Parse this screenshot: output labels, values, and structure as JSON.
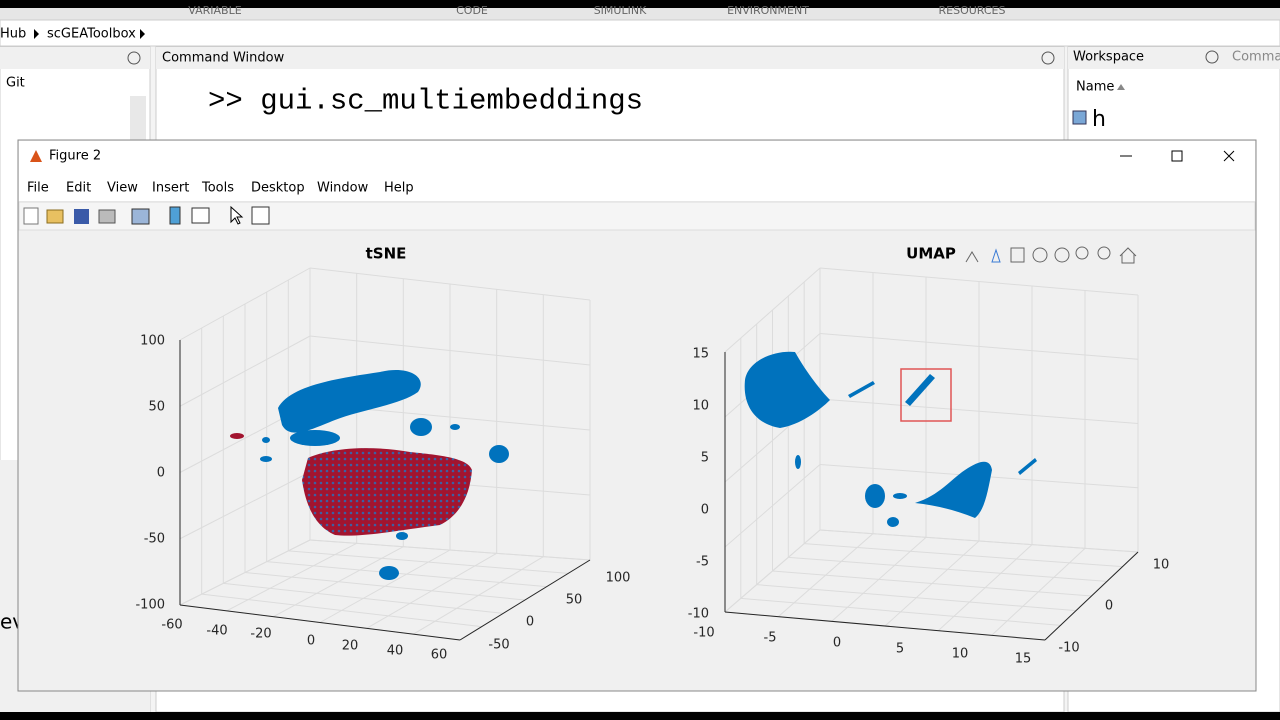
{
  "toolstrip": {
    "tabs": [
      "VARIABLE",
      "CODE",
      "SIMULINK",
      "ENVIRONMENT",
      "RESOURCES"
    ]
  },
  "breadcrumb": [
    "Hub",
    "scGEAToolbox"
  ],
  "left_panel": {
    "title": "Git",
    "fragment": "ev"
  },
  "command_window": {
    "title": "Command Window",
    "command": ">> gui.sc_multiembeddings"
  },
  "workspace": {
    "title": "Workspace",
    "next_tab": "Comma",
    "column": "Name",
    "variable": "h"
  },
  "figure": {
    "title": "Figure 2",
    "menu": [
      "File",
      "Edit",
      "View",
      "Insert",
      "Tools",
      "Desktop",
      "Window",
      "Help"
    ],
    "axes": [
      {
        "title": "tSNE",
        "xticks": [
          "-60",
          "-40",
          "-20",
          "0",
          "20",
          "40",
          "60"
        ],
        "yticks": [
          "-50",
          "0",
          "50",
          "100"
        ],
        "zticks": [
          "100",
          "50",
          "0",
          "-50",
          "-100"
        ]
      },
      {
        "title": "UMAP",
        "xticks": [
          "-10",
          "-5",
          "0",
          "5",
          "10",
          "15"
        ],
        "yticks": [
          "-10",
          "0",
          "10"
        ],
        "zticks": [
          "15",
          "10",
          "5",
          "0",
          "-5",
          "-10"
        ]
      }
    ]
  }
}
